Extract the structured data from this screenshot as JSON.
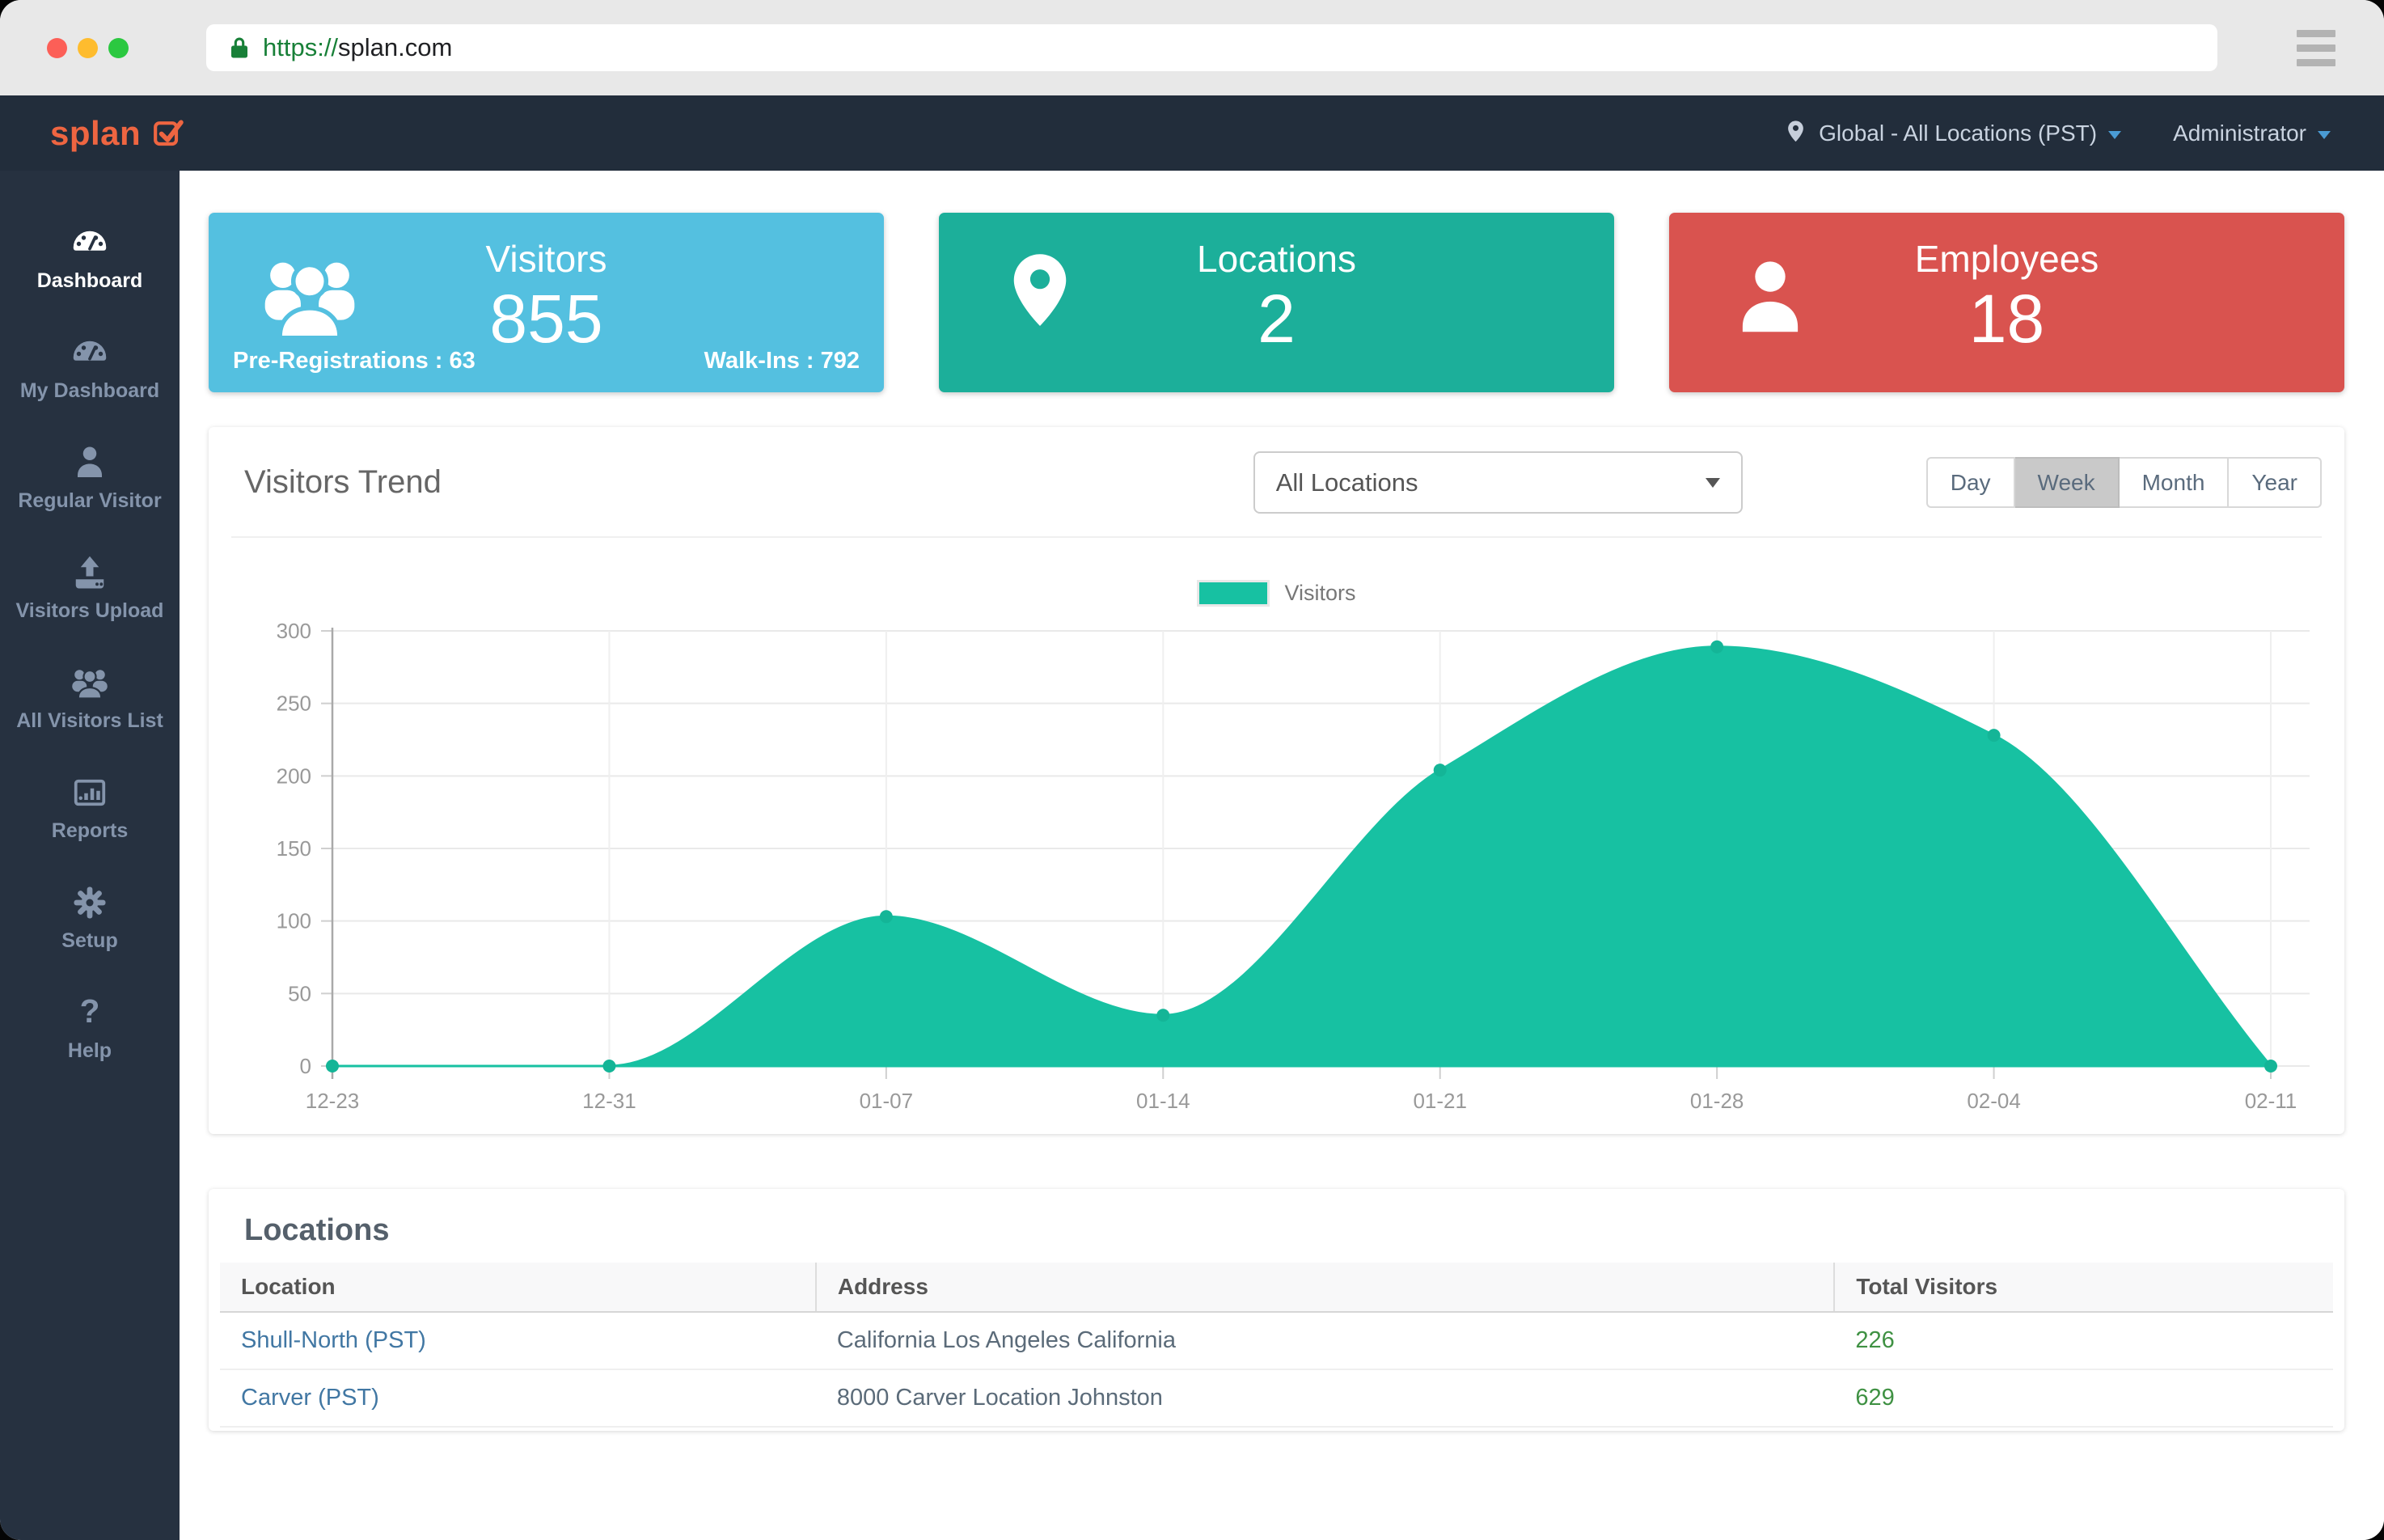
{
  "browser": {
    "url_scheme": "https://",
    "url_host": "splan.com"
  },
  "header": {
    "brand": "splan",
    "location_selector": "Global - All Locations (PST)",
    "user_menu": "Administrator"
  },
  "sidebar": {
    "items": [
      {
        "label": "Dashboard",
        "icon": "dashboard-gauge-icon",
        "active": true
      },
      {
        "label": "My Dashboard",
        "icon": "my-dashboard-gauge-icon",
        "active": false
      },
      {
        "label": "Regular Visitor",
        "icon": "person-icon",
        "active": false
      },
      {
        "label": "Visitors Upload",
        "icon": "upload-icon",
        "active": false
      },
      {
        "label": "All Visitors List",
        "icon": "people-group-icon",
        "active": false
      },
      {
        "label": "Reports",
        "icon": "bar-chart-icon",
        "active": false
      },
      {
        "label": "Setup",
        "icon": "gear-icon",
        "active": false
      },
      {
        "label": "Help",
        "icon": "question-mark-icon",
        "active": false
      }
    ]
  },
  "stats": [
    {
      "title": "Visitors",
      "value": "855",
      "sub_left": "Pre-Registrations : 63",
      "sub_right": "Walk-Ins : 792",
      "color": "#54c0e0",
      "icon": "visitors-group-icon"
    },
    {
      "title": "Locations",
      "value": "2",
      "color": "#1caf9a",
      "icon": "location-pin-icon"
    },
    {
      "title": "Employees",
      "value": "18",
      "color": "#d9534f",
      "icon": "employee-person-icon"
    }
  ],
  "trend": {
    "title": "Visitors Trend",
    "location_filter": {
      "value": "All Locations"
    },
    "range_buttons": [
      {
        "label": "Day",
        "active": false
      },
      {
        "label": "Week",
        "active": true
      },
      {
        "label": "Month",
        "active": false
      },
      {
        "label": "Year",
        "active": false
      }
    ],
    "legend_label": "Visitors"
  },
  "chart_data": {
    "type": "area",
    "title": "Visitors Trend",
    "x": [
      "12-23",
      "12-31",
      "01-07",
      "01-14",
      "01-21",
      "01-28",
      "02-04",
      "02-11"
    ],
    "series": [
      {
        "name": "Visitors",
        "values": [
          0,
          0,
          103,
          35,
          204,
          289,
          228,
          0
        ]
      }
    ],
    "ylim": [
      0,
      300
    ],
    "ytick_step": 50,
    "grid": true,
    "legend_position": "top",
    "color": "#17c1a2",
    "marker_color": "#14b597"
  },
  "locations_table": {
    "title": "Locations",
    "columns": [
      "Location",
      "Address",
      "Total Visitors"
    ],
    "rows": [
      {
        "location": "Shull-North (PST)",
        "address": "California Los Angeles California",
        "total_visitors": "226"
      },
      {
        "location": "Carver (PST)",
        "address": "8000 Carver Location Johnston",
        "total_visitors": "629"
      }
    ]
  },
  "colors": {
    "accent_orange": "#ee6541",
    "header_bg": "#222d3b",
    "sidebar_bg": "#263140",
    "link_blue": "#4177a3",
    "total_green": "#3f9143",
    "url_secure_green": "#188038",
    "caret_blue": "#4a9bd4"
  }
}
